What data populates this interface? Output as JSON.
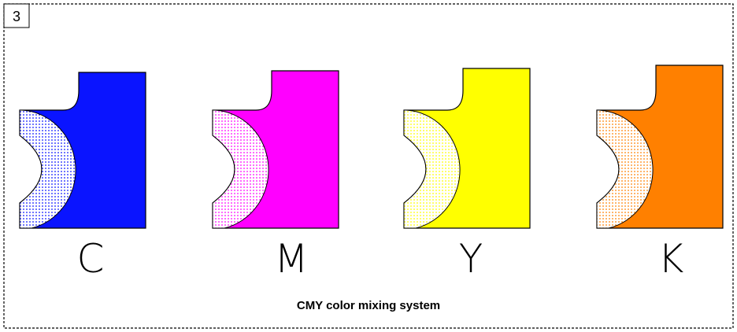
{
  "figure_number": "3",
  "panels": [
    {
      "label": "C"
    },
    {
      "label": "M"
    },
    {
      "label": "Y"
    },
    {
      "label": "K"
    }
  ],
  "caption": "CMY color mixing system"
}
